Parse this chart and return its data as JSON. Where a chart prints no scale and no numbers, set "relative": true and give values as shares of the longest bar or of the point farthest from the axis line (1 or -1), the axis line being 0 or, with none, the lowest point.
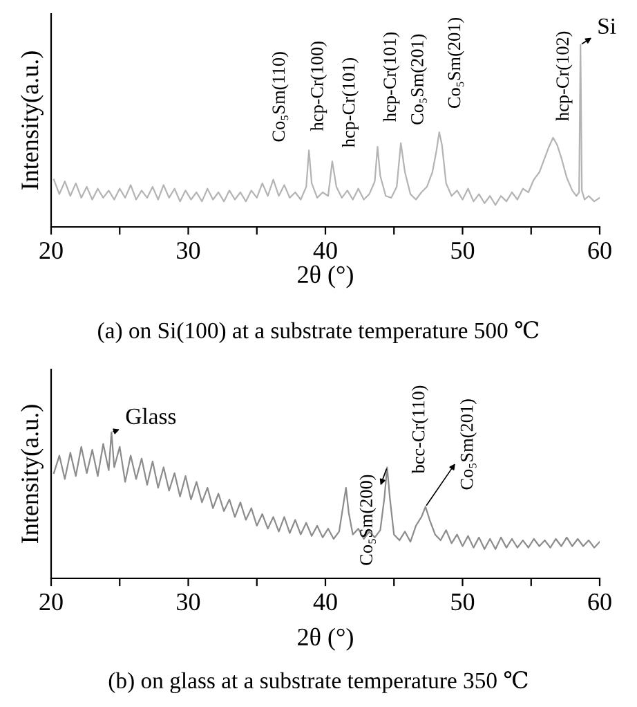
{
  "chart_data": [
    {
      "type": "line",
      "relative": true,
      "title": "(a) on Si(100) at a substrate temperature 500 ℃",
      "xlabel": "2θ (°)",
      "ylabel": "Intensity(a.u.)",
      "xlim": [
        20,
        60
      ],
      "xticks": [
        20,
        {
          "value": 25,
          "label": null
        },
        30,
        {
          "value": 35,
          "label": null
        },
        40,
        {
          "value": 45,
          "label": null
        },
        50,
        {
          "value": 55,
          "label": null
        },
        60
      ],
      "grid": false,
      "legend": false,
      "series": [
        {
          "color": "#b4b4b4",
          "x": [
            20.2,
            20.6,
            21,
            21.4,
            21.8,
            22.2,
            22.6,
            23,
            23.4,
            23.8,
            24.2,
            24.6,
            25,
            25.4,
            25.8,
            26.2,
            26.6,
            27,
            27.4,
            27.8,
            28.2,
            28.6,
            29,
            29.4,
            29.8,
            30.2,
            30.6,
            31,
            31.4,
            31.8,
            32.2,
            32.6,
            33,
            33.4,
            33.8,
            34.2,
            34.6,
            35,
            35.4,
            35.8,
            36.2,
            36.6,
            37,
            37.4,
            37.8,
            38.2,
            38.6,
            38.8,
            39,
            39.4,
            39.8,
            40.2,
            40.5,
            40.8,
            41.2,
            41.6,
            42,
            42.4,
            42.8,
            43.2,
            43.6,
            43.8,
            44,
            44.4,
            44.8,
            45.2,
            45.5,
            45.8,
            46.2,
            46.6,
            47,
            47.4,
            47.8,
            48.1,
            48.3,
            48.5,
            48.8,
            49.2,
            49.6,
            50,
            50.4,
            50.8,
            51.2,
            51.6,
            52,
            52.4,
            52.8,
            53.2,
            53.6,
            54,
            54.4,
            54.8,
            55.2,
            55.6,
            56,
            56.3,
            56.6,
            56.9,
            57.2,
            57.6,
            58,
            58.3,
            58.5,
            58.6,
            58.7,
            58.9,
            59.2,
            59.6,
            60
          ],
          "values": [
            0.26,
            0.18,
            0.25,
            0.17,
            0.24,
            0.16,
            0.22,
            0.15,
            0.21,
            0.16,
            0.2,
            0.15,
            0.21,
            0.16,
            0.23,
            0.15,
            0.2,
            0.16,
            0.22,
            0.15,
            0.23,
            0.16,
            0.21,
            0.14,
            0.2,
            0.15,
            0.19,
            0.14,
            0.21,
            0.15,
            0.19,
            0.14,
            0.2,
            0.15,
            0.19,
            0.14,
            0.2,
            0.16,
            0.24,
            0.17,
            0.26,
            0.17,
            0.23,
            0.16,
            0.19,
            0.15,
            0.22,
            0.42,
            0.24,
            0.16,
            0.19,
            0.17,
            0.36,
            0.22,
            0.16,
            0.2,
            0.15,
            0.21,
            0.15,
            0.18,
            0.25,
            0.44,
            0.28,
            0.17,
            0.16,
            0.22,
            0.46,
            0.3,
            0.18,
            0.15,
            0.19,
            0.22,
            0.3,
            0.42,
            0.52,
            0.45,
            0.24,
            0.17,
            0.2,
            0.15,
            0.21,
            0.14,
            0.18,
            0.13,
            0.17,
            0.12,
            0.17,
            0.14,
            0.19,
            0.15,
            0.21,
            0.19,
            0.26,
            0.3,
            0.38,
            0.44,
            0.49,
            0.45,
            0.38,
            0.27,
            0.2,
            0.17,
            0.19,
            1.0,
            0.2,
            0.15,
            0.17,
            0.14,
            0.16
          ]
        }
      ],
      "annotations": [
        {
          "text": "Co₅Sm(110)",
          "x": 36.2,
          "y": 0.26
        },
        {
          "text": "hcp-Cr(100)",
          "x": 38.8,
          "y": 0.42
        },
        {
          "text": "hcp-Cr(101)",
          "x": 40.5,
          "y": 0.36
        },
        {
          "text": "hcp-Cr(101)",
          "x": 43.8,
          "y": 0.44
        },
        {
          "text": "Co₅Sm(201)",
          "x": 45.5,
          "y": 0.46
        },
        {
          "text": "Co₅Sm(201)",
          "x": 48.3,
          "y": 0.52
        },
        {
          "text": "hcp-Cr(102)",
          "x": 56.6,
          "y": 0.49
        },
        {
          "text": "Si",
          "x": 58.6,
          "y": 1.0
        }
      ]
    },
    {
      "type": "line",
      "relative": true,
      "title": "(b) on glass at a substrate temperature 350 ℃",
      "xlabel": "2θ (°)",
      "ylabel": "Intensity(a.u.)",
      "xlim": [
        20,
        60
      ],
      "xticks": [
        20,
        {
          "value": 25,
          "label": null
        },
        30,
        {
          "value": 35,
          "label": null
        },
        40,
        {
          "value": 45,
          "label": null
        },
        50,
        {
          "value": 55,
          "label": null
        },
        60
      ],
      "grid": false,
      "legend": false,
      "series": [
        {
          "color": "#8c8c8c",
          "x": [
            20.2,
            20.6,
            21,
            21.4,
            21.8,
            22.2,
            22.6,
            23,
            23.4,
            23.8,
            24.2,
            24.4,
            24.6,
            25,
            25.4,
            25.8,
            26.2,
            26.6,
            27,
            27.4,
            27.8,
            28.2,
            28.6,
            29,
            29.4,
            29.8,
            30.2,
            30.6,
            31,
            31.4,
            31.8,
            32.2,
            32.6,
            33,
            33.4,
            33.8,
            34.2,
            34.6,
            35,
            35.4,
            35.8,
            36.2,
            36.6,
            37,
            37.4,
            37.8,
            38.2,
            38.6,
            39,
            39.4,
            39.8,
            40.2,
            40.6,
            41,
            41.3,
            41.5,
            41.7,
            42,
            42.4,
            42.8,
            43.2,
            43.6,
            44,
            44.3,
            44.5,
            44.7,
            45,
            45.4,
            45.8,
            46.2,
            46.6,
            47,
            47.3,
            47.6,
            48,
            48.4,
            48.8,
            49.2,
            49.6,
            50,
            50.4,
            50.8,
            51.2,
            51.6,
            52,
            52.4,
            52.8,
            53.2,
            53.6,
            54,
            54.4,
            54.8,
            55.2,
            55.6,
            56,
            56.4,
            56.8,
            57.2,
            57.6,
            58,
            58.4,
            58.8,
            59.2,
            59.6,
            60
          ],
          "values": [
            0.72,
            0.84,
            0.68,
            0.86,
            0.7,
            0.9,
            0.72,
            0.88,
            0.7,
            0.92,
            0.74,
            1.0,
            0.76,
            0.9,
            0.66,
            0.84,
            0.68,
            0.82,
            0.64,
            0.8,
            0.62,
            0.76,
            0.6,
            0.72,
            0.56,
            0.7,
            0.54,
            0.66,
            0.52,
            0.62,
            0.48,
            0.58,
            0.46,
            0.54,
            0.42,
            0.52,
            0.4,
            0.48,
            0.36,
            0.44,
            0.34,
            0.42,
            0.32,
            0.42,
            0.31,
            0.4,
            0.3,
            0.38,
            0.29,
            0.36,
            0.28,
            0.34,
            0.27,
            0.32,
            0.5,
            0.62,
            0.45,
            0.3,
            0.34,
            0.27,
            0.32,
            0.28,
            0.33,
            0.55,
            0.76,
            0.55,
            0.3,
            0.26,
            0.32,
            0.25,
            0.36,
            0.42,
            0.49,
            0.4,
            0.3,
            0.26,
            0.33,
            0.24,
            0.3,
            0.22,
            0.29,
            0.21,
            0.28,
            0.2,
            0.27,
            0.2,
            0.28,
            0.21,
            0.27,
            0.21,
            0.26,
            0.21,
            0.27,
            0.22,
            0.26,
            0.21,
            0.27,
            0.22,
            0.28,
            0.22,
            0.27,
            0.22,
            0.26,
            0.21,
            0.25
          ]
        }
      ],
      "annotations": [
        {
          "text": "Glass",
          "x": 24.4,
          "y": 1.0
        },
        {
          "text": "Co₅Sm(200)",
          "x": 44.5,
          "y": 0.76
        },
        {
          "text": "bcc-Cr(110)",
          "x": 47.3,
          "y": 0.49
        },
        {
          "text": "Co₅Sm(201)",
          "x": 47.3,
          "y": 0.49
        }
      ]
    }
  ]
}
